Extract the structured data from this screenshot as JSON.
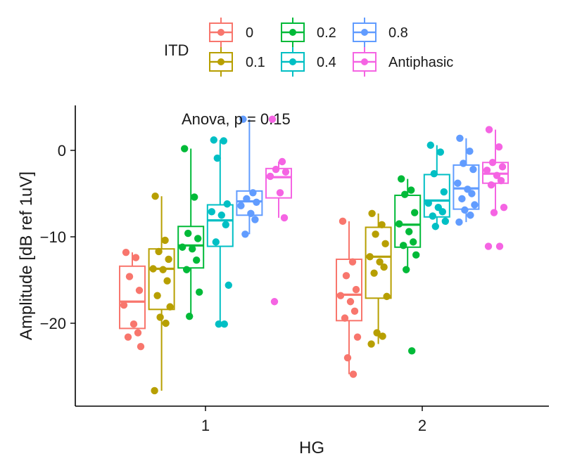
{
  "chart_data": {
    "type": "box",
    "xlabel": "HG",
    "ylabel": "Amplitude [dB ref 1uV]",
    "annotation": "Anova, p = 0.15",
    "categories": [
      "1",
      "2"
    ],
    "yticks": [
      0,
      -10,
      -20
    ],
    "ytick_labels": [
      "0",
      "−10",
      "−20"
    ],
    "ylim": [
      -29,
      5
    ],
    "legend": {
      "title": "ITD",
      "position": "top"
    },
    "series": [
      {
        "name": "0",
        "color": "#F8766D",
        "boxes": [
          {
            "group": "1",
            "q1": -20.6,
            "median": -17.5,
            "q3": -13.4,
            "whisker_low": -20.6,
            "whisker_high": -11.8,
            "points": [
              -11.8,
              -12.4,
              -14.6,
              -16.2,
              -17.9,
              -20.1,
              -21.1,
              -21.6,
              -22.7
            ]
          },
          {
            "group": "2",
            "q1": -19.7,
            "median": -16.7,
            "q3": -12.6,
            "whisker_low": -25.9,
            "whisker_high": -8.2,
            "points": [
              -8.2,
              -12.9,
              -14.5,
              -16.1,
              -16.8,
              -17.5,
              -18.6,
              -19.4,
              -21.6,
              -24.0,
              -25.9
            ]
          }
        ]
      },
      {
        "name": "0.1",
        "color": "#B79F00",
        "boxes": [
          {
            "group": "1",
            "q1": -18.4,
            "median": -13.7,
            "q3": -11.4,
            "whisker_low": -27.8,
            "whisker_high": -5.3,
            "points": [
              -5.3,
              -10.4,
              -11.7,
              -12.6,
              -13.7,
              -13.8,
              -15.1,
              -16.8,
              -18.1,
              -19.3,
              -20.0,
              -27.8
            ]
          },
          {
            "group": "2",
            "q1": -17.1,
            "median": -12.3,
            "q3": -8.9,
            "whisker_low": -22.4,
            "whisker_high": -7.3,
            "points": [
              -7.3,
              -8.6,
              -9.7,
              -10.8,
              -12.3,
              -12.9,
              -13.5,
              -14.2,
              -16.9,
              -21.1,
              -21.5,
              -22.4
            ]
          }
        ]
      },
      {
        "name": "0.2",
        "color": "#00BA38",
        "boxes": [
          {
            "group": "1",
            "q1": -13.6,
            "median": -11.0,
            "q3": -8.8,
            "whisker_low": -19.2,
            "whisker_high": 0.2,
            "points": [
              0.2,
              -5.4,
              -9.6,
              -10.2,
              -11.2,
              -11.4,
              -12.7,
              -13.8,
              -16.4,
              -19.2
            ]
          },
          {
            "group": "2",
            "q1": -11.2,
            "median": -8.6,
            "q3": -5.2,
            "whisker_low": -13.8,
            "whisker_high": -3.3,
            "points": [
              -3.3,
              -4.6,
              -5.1,
              -7.2,
              -8.5,
              -9.4,
              -10.6,
              -11.0,
              -12.1,
              -13.8,
              -23.2
            ]
          }
        ]
      },
      {
        "name": "0.4",
        "color": "#00BFC4",
        "boxes": [
          {
            "group": "1",
            "q1": -11.1,
            "median": -8.1,
            "q3": -6.3,
            "whisker_low": -20.1,
            "whisker_high": 1.2,
            "points": [
              1.2,
              1.1,
              -0.9,
              -6.2,
              -7.1,
              -7.5,
              -8.6,
              -10.6,
              -15.6,
              -20.1,
              -20.1
            ]
          },
          {
            "group": "2",
            "q1": -7.7,
            "median": -5.8,
            "q3": -2.8,
            "whisker_low": -8.8,
            "whisker_high": 0.6,
            "points": [
              0.6,
              -0.2,
              -2.7,
              -4.8,
              -6.1,
              -6.6,
              -7.1,
              -7.6,
              -8.2,
              -8.8
            ]
          }
        ]
      },
      {
        "name": "0.8",
        "color": "#619CFF",
        "boxes": [
          {
            "group": "1",
            "q1": -7.5,
            "median": -5.9,
            "q3": -4.7,
            "whisker_low": -9.7,
            "whisker_high": 3.6,
            "points": [
              3.6,
              -4.9,
              -5.6,
              -6.0,
              -6.4,
              -7.3,
              -8.0,
              -9.7
            ]
          },
          {
            "group": "2",
            "q1": -6.8,
            "median": -4.4,
            "q3": -1.7,
            "whisker_low": -8.3,
            "whisker_high": 1.4,
            "points": [
              1.4,
              -0.1,
              -1.5,
              -2.2,
              -3.8,
              -4.5,
              -5.0,
              -5.6,
              -6.3,
              -6.9,
              -7.5,
              -8.3
            ]
          }
        ]
      },
      {
        "name": "Antiphasic",
        "color": "#F564E3",
        "boxes": [
          {
            "group": "1",
            "q1": -5.5,
            "median": -3.1,
            "q3": -2.1,
            "whisker_low": -7.8,
            "whisker_high": -1.3,
            "points": [
              3.6,
              -1.3,
              -2.2,
              -2.5,
              -3.0,
              -4.9,
              -7.8,
              -17.5
            ]
          },
          {
            "group": "2",
            "q1": -3.8,
            "median": -2.7,
            "q3": -1.4,
            "whisker_low": -7.2,
            "whisker_high": 2.4,
            "points": [
              2.4,
              0.4,
              -1.4,
              -1.9,
              -2.3,
              -2.9,
              -3.5,
              -4.0,
              -6.6,
              -7.2,
              -11.1,
              -11.1
            ]
          }
        ]
      }
    ]
  }
}
